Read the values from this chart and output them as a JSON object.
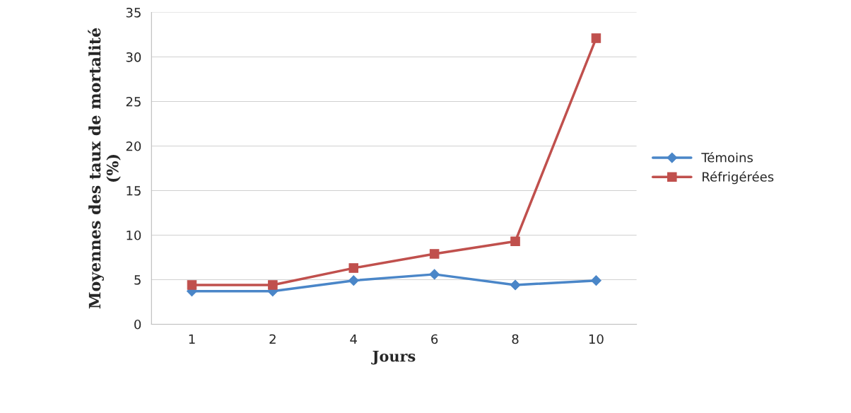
{
  "chart_data": {
    "type": "line",
    "xlabel": "Jours",
    "ylabel": "Moyennes des taux de mortalité\n(%)",
    "categories": [
      "1",
      "2",
      "4",
      "6",
      "8",
      "10"
    ],
    "series": [
      {
        "name": "Témoins",
        "color": "#4a86c8",
        "marker": "diamond",
        "values": [
          3.7,
          3.7,
          4.9,
          5.6,
          4.4,
          4.9
        ]
      },
      {
        "name": "Réfrigérées",
        "color": "#c0504d",
        "marker": "square",
        "values": [
          4.4,
          4.4,
          6.3,
          7.9,
          9.3,
          32.1
        ]
      }
    ],
    "ylim": [
      0,
      35
    ],
    "yticks": [
      0,
      5,
      10,
      15,
      20,
      25,
      30,
      35
    ],
    "grid": "y",
    "legend": "right",
    "line_style": "solid"
  }
}
